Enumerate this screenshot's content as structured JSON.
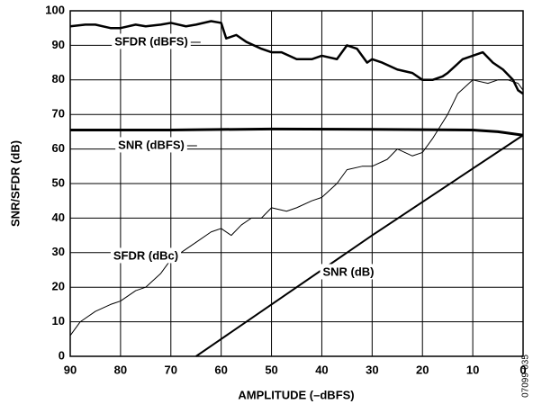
{
  "chart_data": {
    "type": "line",
    "xlabel": "AMPLITUDE (–dBFS)",
    "ylabel": "SNR/SFDR (dB)",
    "figure_code": "07099-035",
    "xlim": [
      90,
      0
    ],
    "xticks": [
      90,
      80,
      70,
      60,
      50,
      40,
      30,
      20,
      10,
      0
    ],
    "ylim": [
      0,
      100
    ],
    "yticks": [
      0,
      10,
      20,
      30,
      40,
      50,
      60,
      70,
      80,
      90,
      100
    ],
    "grid": true,
    "series": [
      {
        "name": "SFDR (dBFS)",
        "color": "#000",
        "width": 2.5,
        "x": [
          90,
          87,
          85,
          82,
          80,
          77,
          75,
          72,
          70,
          67,
          65,
          62,
          60,
          59,
          57,
          55,
          52,
          50,
          48,
          45,
          42,
          40,
          37,
          35,
          33,
          31,
          30,
          28,
          25,
          22,
          20,
          18,
          16,
          15,
          12,
          10,
          8,
          6,
          4,
          2,
          1,
          0
        ],
        "values": [
          95.5,
          96,
          96,
          95,
          95,
          96,
          95.5,
          96,
          96.5,
          95.5,
          96,
          97,
          96.5,
          92,
          93,
          91,
          89,
          88,
          88,
          86,
          86,
          87,
          86,
          90,
          89,
          85,
          86,
          85,
          83,
          82,
          80,
          80,
          81,
          82,
          86,
          87,
          88,
          85,
          83,
          80,
          77,
          76
        ]
      },
      {
        "name": "SNR (dBFS)",
        "color": "#000",
        "width": 3,
        "x": [
          90,
          70,
          50,
          30,
          10,
          5,
          0
        ],
        "values": [
          65.5,
          65.5,
          65.8,
          65.7,
          65.5,
          65,
          64
        ]
      },
      {
        "name": "SFDR (dBc)",
        "color": "#000",
        "width": 1,
        "x": [
          90,
          88,
          85,
          82,
          80,
          77,
          75,
          72,
          70,
          67,
          65,
          62,
          60,
          58,
          56,
          54,
          52,
          50,
          47,
          45,
          42,
          40,
          37,
          35,
          32,
          30,
          27,
          25,
          22,
          20,
          18,
          15,
          13,
          10,
          7,
          5,
          3,
          1,
          0
        ],
        "values": [
          6,
          10,
          13,
          15,
          16,
          19,
          20,
          24,
          28,
          31,
          33,
          36,
          37,
          35,
          38,
          40,
          40,
          43,
          42,
          43,
          45,
          46,
          50,
          54,
          55,
          55,
          57,
          60,
          58,
          59,
          63,
          70,
          76,
          80,
          79,
          80,
          80,
          79,
          77
        ]
      },
      {
        "name": "SNR (dB)",
        "color": "#000",
        "width": 2,
        "x": [
          65,
          30,
          0
        ],
        "values": [
          0,
          35,
          64
        ]
      }
    ]
  }
}
